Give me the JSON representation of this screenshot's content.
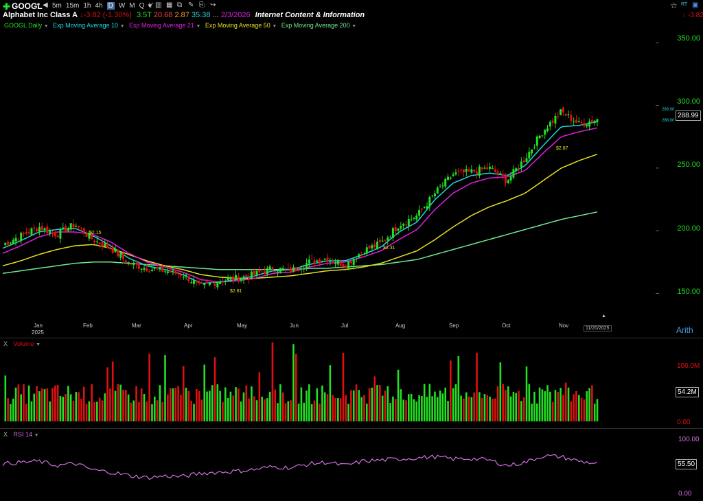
{
  "header": {
    "ticker": "GOOGL",
    "timeframes": [
      "5m",
      "15m",
      "1h",
      "4h",
      "D",
      "W",
      "M",
      "Q",
      "Y"
    ],
    "active_timeframe": "D",
    "company": "Alphabet Inc Class A",
    "change": "-3.82",
    "change_pct": "(-1.30%)",
    "market_cap": "3.5T",
    "pe": "20.68",
    "val3": "2.87",
    "val4": "35.38",
    "ellipsis": "...",
    "date": "2/3/2026",
    "industry": "Internet Content & Information",
    "right_change": "-3.82",
    "rt_label": "RT"
  },
  "legend": {
    "main": "GOOGL Daily",
    "ema10": "Exp Moving Average 10",
    "ema21": "Exp Moving Average 21",
    "ema50": "Exp Moving Average 50",
    "ema200": "Exp Moving Average 200"
  },
  "colors": {
    "up": "#22e022",
    "down": "#e01010",
    "ema10": "#22d8e0",
    "ema21": "#e020e0",
    "ema50": "#e8e020",
    "ema200": "#70e890",
    "rsi": "#d070e0",
    "axis_green": "#22e022"
  },
  "price_axis": {
    "labels": [
      "350.00",
      "300.00",
      "250.00",
      "200.00",
      "150.00"
    ],
    "current": "288.99",
    "small_top": "289.00",
    "small_bottom": "288.00",
    "scale_mode": "Arith"
  },
  "time_axis": {
    "months": [
      "Jan",
      "Feb",
      "Mar",
      "Apr",
      "May",
      "Jun",
      "Jul",
      "Aug",
      "Sep",
      "Oct",
      "Nov"
    ],
    "year": "2025",
    "cursor_date": "11/20/2025"
  },
  "annotations": [
    "$2.15",
    "$2.81",
    "$2.31",
    "$2.87"
  ],
  "volume": {
    "title": "Volume",
    "close_x": "X",
    "axis": [
      "100.0M",
      "0.00"
    ],
    "current": "54.2M"
  },
  "rsi": {
    "title": "RSI 14",
    "close_x": "X",
    "axis": [
      "100.00",
      "0.00"
    ],
    "current": "55.50"
  },
  "chart_data": {
    "type": "candlestick",
    "title": "GOOGL Daily",
    "ylim": [
      130,
      360
    ],
    "close_weekly": [
      189,
      196,
      203,
      197,
      205,
      193,
      186,
      174,
      170,
      168,
      165,
      155,
      160,
      162,
      165,
      170,
      168,
      175,
      178,
      173,
      184,
      190,
      205,
      212,
      230,
      245,
      247,
      250,
      240,
      258,
      280,
      295,
      285,
      289
    ],
    "ema10_weekly": [
      186,
      192,
      199,
      201,
      202,
      196,
      188,
      178,
      172,
      169,
      165,
      158,
      159,
      161,
      164,
      168,
      169,
      173,
      176,
      176,
      181,
      187,
      199,
      207,
      225,
      238,
      244,
      246,
      244,
      252,
      268,
      283,
      284,
      287
    ],
    "ema21_weekly": [
      182,
      188,
      195,
      199,
      199,
      197,
      191,
      182,
      175,
      171,
      167,
      161,
      159,
      160,
      162,
      166,
      167,
      171,
      174,
      175,
      179,
      184,
      193,
      201,
      217,
      230,
      238,
      242,
      243,
      248,
      262,
      275,
      279,
      282
    ],
    "ema50_weekly": [
      172,
      176,
      181,
      185,
      188,
      189,
      186,
      181,
      176,
      172,
      169,
      165,
      163,
      162,
      162,
      163,
      164,
      166,
      168,
      169,
      171,
      174,
      179,
      184,
      193,
      203,
      212,
      219,
      224,
      230,
      240,
      250,
      256,
      261
    ],
    "ema200_weekly": [
      166,
      168,
      170,
      172,
      174,
      175,
      175,
      174,
      173,
      172,
      171,
      170,
      169,
      169,
      169,
      169,
      169,
      170,
      170,
      171,
      172,
      173,
      175,
      177,
      181,
      185,
      189,
      193,
      197,
      201,
      205,
      209,
      212,
      215
    ],
    "volume_scale_max": 120,
    "rsi_weekly": [
      55,
      58,
      60,
      52,
      56,
      44,
      40,
      34,
      30,
      33,
      32,
      38,
      40,
      42,
      45,
      50,
      48,
      55,
      58,
      52,
      60,
      62,
      64,
      66,
      68,
      64,
      65,
      62,
      52,
      58,
      70,
      68,
      60,
      55.5
    ]
  }
}
